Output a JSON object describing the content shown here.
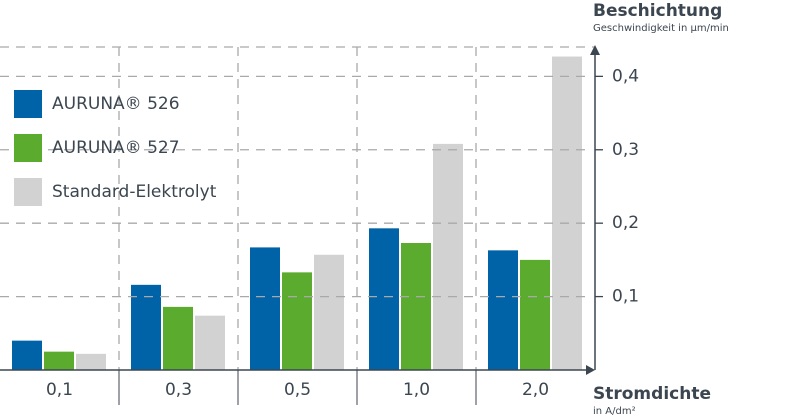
{
  "chart_data": {
    "type": "bar",
    "y_label": "Beschichtung",
    "y_unit": "Geschwindigkeit in µm/min",
    "x_label": "Stromdichte",
    "x_unit": "in A/dm²",
    "categories": [
      "0,1",
      "0,3",
      "0,5",
      "1,0",
      "2,0"
    ],
    "series": [
      {
        "name": "AURUNA® 526",
        "color": "#0063a8",
        "values": [
          0.04,
          0.116,
          0.167,
          0.193,
          0.163
        ]
      },
      {
        "name": "AURUNA® 527",
        "color": "#5bab2f",
        "values": [
          0.025,
          0.086,
          0.133,
          0.173,
          0.15
        ]
      },
      {
        "name": "Standard-Elektrolyt",
        "color": "#d2d2d2",
        "values": [
          0.022,
          0.074,
          0.157,
          0.308,
          0.427
        ]
      }
    ],
    "ylim": [
      0,
      0.44
    ],
    "yticks": [
      {
        "value": 0.1,
        "label": "0,1"
      },
      {
        "value": 0.2,
        "label": "0,2"
      },
      {
        "value": 0.3,
        "label": "0,3"
      },
      {
        "value": 0.4,
        "label": "0,4"
      }
    ],
    "grid": true,
    "legend": "upper left"
  }
}
